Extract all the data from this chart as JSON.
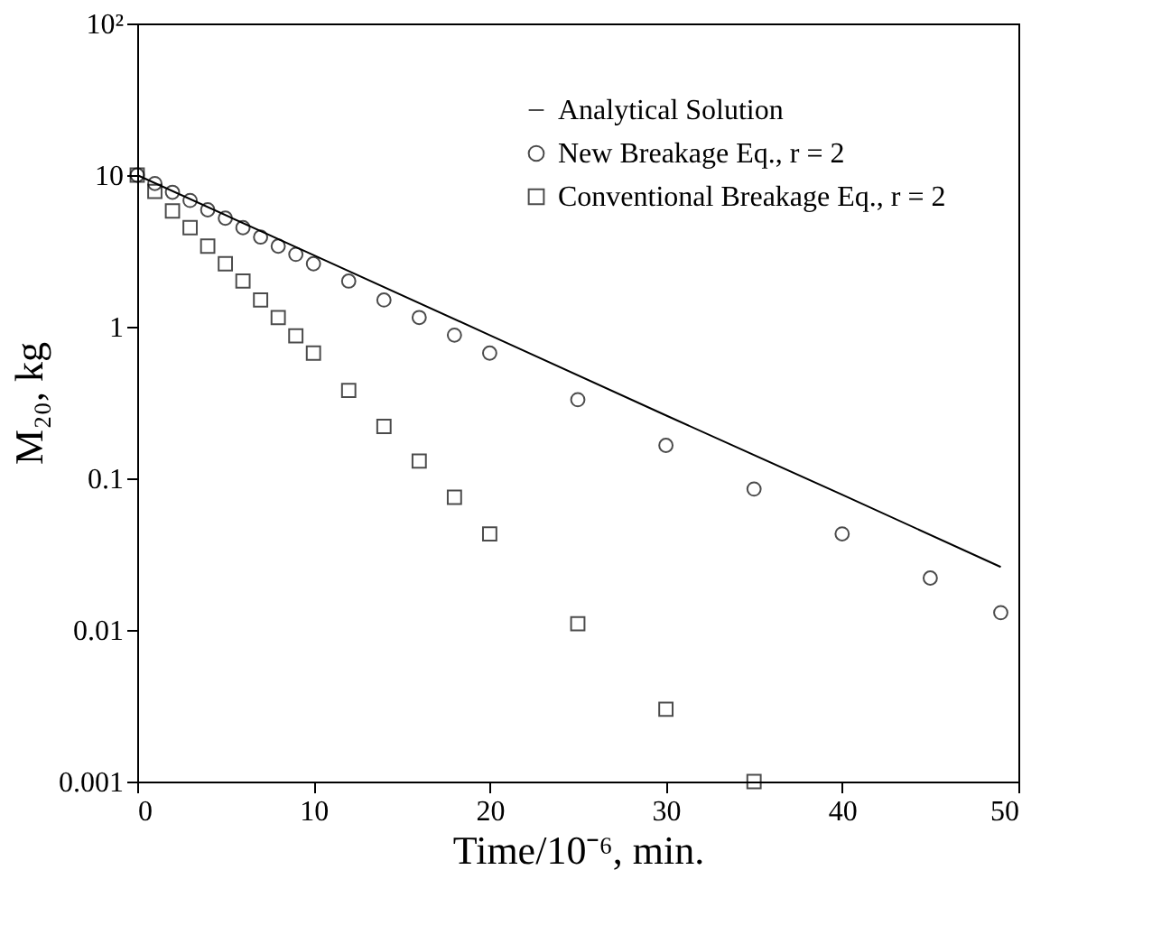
{
  "chart_data": {
    "type": "scatter",
    "xlabel": "Time/10⁻⁶, min.",
    "ylabel": "M₂₀, kg",
    "xlim": [
      0,
      50
    ],
    "xticks": [
      0,
      10,
      20,
      30,
      40,
      50
    ],
    "ylim": [
      0.001,
      100
    ],
    "yticks": [
      {
        "value": 100,
        "label": "10²"
      },
      10,
      1,
      0.1,
      0.01,
      0.001
    ],
    "log": "y",
    "grid": false,
    "legend": "top right",
    "series": [
      {
        "name": "Analytical Solution",
        "type": "line",
        "marker": "none",
        "line_style": "solid",
        "color": "#000000",
        "x": [
          0,
          10,
          20,
          30,
          40,
          49
        ],
        "values": [
          10,
          2.97,
          0.88,
          0.26,
          0.078,
          0.026
        ]
      },
      {
        "name": "New Breakage Eq., r = 2",
        "marker": "circle",
        "color": "#000000",
        "x": [
          0,
          1,
          2,
          3,
          4,
          5,
          6,
          7,
          8,
          9,
          10,
          12,
          14,
          16,
          18,
          20,
          25,
          30,
          35,
          40,
          45,
          49
        ],
        "values": [
          10,
          8.8,
          7.7,
          6.8,
          5.9,
          5.2,
          4.5,
          3.9,
          3.4,
          3.0,
          2.6,
          2.0,
          1.5,
          1.15,
          0.88,
          0.67,
          0.33,
          0.165,
          0.085,
          0.043,
          0.022,
          0.013
        ]
      },
      {
        "name": "Conventional Breakage Eq., r = 2",
        "marker": "square",
        "color": "#000000",
        "x": [
          0,
          1,
          2,
          3,
          4,
          5,
          6,
          7,
          8,
          9,
          10,
          12,
          14,
          16,
          18,
          20,
          25,
          30,
          35
        ],
        "values": [
          10,
          7.8,
          5.8,
          4.5,
          3.4,
          2.6,
          2.0,
          1.5,
          1.15,
          0.87,
          0.67,
          0.38,
          0.22,
          0.13,
          0.075,
          0.043,
          0.011,
          0.003,
          0.001
        ]
      }
    ]
  }
}
